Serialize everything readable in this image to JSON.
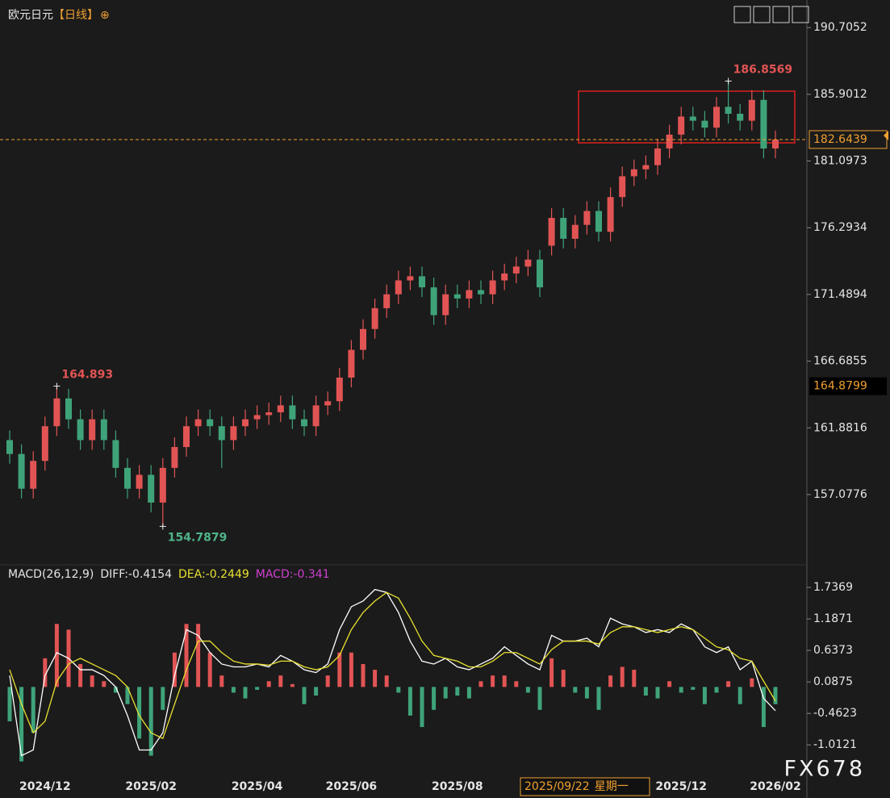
{
  "title": "欧元日元",
  "period": "【日线】",
  "title_icon": "⊕",
  "watermark": "FX678",
  "chart_data": [
    {
      "type": "candlestick",
      "categories": [
        null,
        null,
        null,
        "2024/12",
        null,
        null,
        null,
        null,
        null,
        null,
        null,
        null,
        "2025/02",
        null,
        null,
        null,
        null,
        null,
        null,
        null,
        null,
        "2025/04",
        null,
        null,
        null,
        null,
        null,
        null,
        null,
        "2025/06",
        null,
        null,
        null,
        null,
        null,
        null,
        null,
        null,
        "2025/08",
        null,
        null,
        null,
        null,
        null,
        null,
        null,
        null,
        null,
        null,
        null,
        null,
        null,
        null,
        null,
        null,
        null,
        null,
        "2025/12",
        null,
        null,
        null,
        null,
        null,
        null,
        null,
        "2026/02"
      ],
      "open": [
        161,
        160,
        157.5,
        159.5,
        162,
        164,
        162.5,
        161,
        162.5,
        161,
        159,
        157.5,
        158.5,
        156.5,
        159,
        160.5,
        162,
        162.5,
        162,
        161,
        162,
        162.5,
        162.8,
        163,
        163.5,
        162.5,
        162,
        163.5,
        163.8,
        165.5,
        167.5,
        169,
        170.5,
        171.5,
        172.5,
        172.8,
        172,
        170,
        171.5,
        171.2,
        171.8,
        171.5,
        172.5,
        173,
        173.5,
        174,
        175,
        177,
        175.5,
        176.5,
        177.5,
        176,
        178.5,
        180,
        180.5,
        180.8,
        182,
        183,
        184.3,
        184,
        183.5,
        185,
        184.5,
        184,
        185.5,
        182
      ],
      "high": [
        161.7,
        160.7,
        160.2,
        162.7,
        164.893,
        164.7,
        163.2,
        163.2,
        163.2,
        161.7,
        159.7,
        159.2,
        159.2,
        159.7,
        161.2,
        162.7,
        163.2,
        163.2,
        162.7,
        162.7,
        163.2,
        163.5,
        163.7,
        164.2,
        164.2,
        163.2,
        164.2,
        164.5,
        166.2,
        168.2,
        169.7,
        171.2,
        172.2,
        173.2,
        173.5,
        173.5,
        172.7,
        172.2,
        172.2,
        172.5,
        172.5,
        173.2,
        173.7,
        174.2,
        174.7,
        174.7,
        177.7,
        177.7,
        177.2,
        178.2,
        178.2,
        179.2,
        180.7,
        181.2,
        181.5,
        182.7,
        183.7,
        185,
        185,
        184.7,
        185.7,
        186.8569,
        185.2,
        186.2,
        186.2,
        183.3
      ],
      "low": [
        159.3,
        156.8,
        156.8,
        158.8,
        161.3,
        161.8,
        160.3,
        160.3,
        160.3,
        158.3,
        156.8,
        156.8,
        155.8,
        154.7879,
        158.3,
        159.8,
        161.3,
        161.3,
        159,
        160.3,
        161.3,
        161.8,
        162.1,
        162.3,
        161.8,
        161.3,
        161.3,
        162.8,
        163.1,
        164.8,
        166.8,
        168.3,
        169.8,
        170.8,
        171.8,
        171.3,
        169.3,
        169.3,
        170.5,
        170.5,
        170.8,
        170.8,
        171.8,
        172.3,
        172.8,
        171.3,
        174.3,
        174.8,
        174.8,
        175.8,
        175.3,
        175.3,
        177.8,
        179.3,
        179.8,
        180.1,
        181.3,
        182.3,
        183.3,
        182.8,
        182.8,
        183.8,
        183.3,
        183.3,
        181.3,
        181.3
      ],
      "close": [
        160,
        157.5,
        159.5,
        162,
        164,
        162.5,
        161,
        162.5,
        161,
        159,
        157.5,
        158.5,
        156.5,
        159,
        160.5,
        162,
        162.5,
        162,
        161,
        162,
        162.5,
        162.8,
        163,
        163.5,
        162.5,
        162,
        163.5,
        163.8,
        165.5,
        167.5,
        169,
        170.5,
        171.5,
        172.5,
        172.8,
        172,
        170,
        171.5,
        171.2,
        171.8,
        171.5,
        172.5,
        173,
        173.5,
        174,
        172,
        177,
        175.5,
        176.5,
        177.5,
        176,
        178.5,
        180,
        180.5,
        180.8,
        182,
        183,
        184.3,
        184,
        183.5,
        185,
        184.5,
        184,
        185.5,
        182,
        182.6439
      ],
      "ylim": [
        152.6,
        190.95
      ],
      "yticks": [
        190.7052,
        185.9012,
        181.0973,
        176.2934,
        171.4894,
        166.6855,
        161.8816,
        157.0776
      ],
      "up_color": "#e25454",
      "down_color": "#3fa37a",
      "high_color": "#e25454",
      "low_color": "#4fb58a",
      "last_price_color": "#f0a030",
      "crosshair": {
        "date": "2025/09/22",
        "weekday": "星期一",
        "price": 164.8799
      }
    },
    {
      "type": "macd",
      "name": "MACD(26,12,9)",
      "legend": [
        {
          "label": "DIFF:",
          "value": -0.4154,
          "color": "#e6e6e6"
        },
        {
          "label": "DEA:",
          "value": -0.2449,
          "color": "#e8e030"
        },
        {
          "label": "MACD:",
          "value": -0.341,
          "color": "#d040d0"
        }
      ],
      "histogram": [
        -0.6,
        -1.3,
        -0.8,
        0.5,
        1.1,
        1,
        0.4,
        0.2,
        0.1,
        -0.1,
        -0.3,
        -0.9,
        -1.2,
        -0.4,
        0.6,
        1.1,
        1.1,
        0.6,
        0.2,
        -0.1,
        -0.2,
        -0.05,
        0.1,
        0.2,
        0.05,
        -0.3,
        -0.15,
        0.2,
        0.6,
        0.6,
        0.4,
        0.3,
        0.2,
        -0.1,
        -0.5,
        -0.7,
        -0.4,
        -0.2,
        -0.15,
        -0.2,
        0.1,
        0.2,
        0.2,
        0.1,
        -0.1,
        -0.4,
        0.5,
        0.3,
        -0.1,
        -0.2,
        -0.4,
        0.2,
        0.35,
        0.3,
        -0.15,
        -0.2,
        0.1,
        -0.1,
        -0.05,
        -0.3,
        -0.1,
        0.1,
        -0.3,
        0.15,
        -0.7,
        -0.3
      ],
      "diff": [
        0.2,
        -1.2,
        -1.1,
        0.2,
        0.6,
        0.5,
        0.3,
        0.3,
        0.2,
        0,
        -0.5,
        -1.1,
        -1.1,
        -0.8,
        0.2,
        1,
        0.9,
        0.6,
        0.4,
        0.35,
        0.35,
        0.4,
        0.35,
        0.55,
        0.45,
        0.3,
        0.25,
        0.4,
        1,
        1.4,
        1.5,
        1.7,
        1.65,
        1.3,
        0.8,
        0.45,
        0.4,
        0.5,
        0.35,
        0.3,
        0.4,
        0.5,
        0.7,
        0.55,
        0.4,
        0.3,
        0.9,
        0.8,
        0.8,
        0.85,
        0.7,
        1.2,
        1.1,
        1.05,
        0.95,
        1,
        0.95,
        1.1,
        1,
        0.7,
        0.6,
        0.7,
        0.3,
        0.45,
        -0.2,
        -0.4154
      ],
      "dea": [
        0.3,
        -0.3,
        -0.8,
        -0.6,
        0.1,
        0.4,
        0.5,
        0.4,
        0.3,
        0.2,
        0,
        -0.5,
        -0.8,
        -0.9,
        -0.3,
        0.3,
        0.8,
        0.8,
        0.6,
        0.45,
        0.4,
        0.4,
        0.38,
        0.45,
        0.45,
        0.35,
        0.3,
        0.35,
        0.55,
        1,
        1.3,
        1.5,
        1.65,
        1.55,
        1.2,
        0.8,
        0.55,
        0.5,
        0.45,
        0.35,
        0.35,
        0.45,
        0.6,
        0.6,
        0.5,
        0.4,
        0.65,
        0.8,
        0.8,
        0.8,
        0.75,
        0.95,
        1.05,
        1.05,
        1,
        0.95,
        1,
        1.05,
        1,
        0.85,
        0.7,
        0.65,
        0.5,
        0.45,
        0.1,
        -0.2449
      ],
      "ylim": [
        -1.53,
        1.85
      ],
      "yticks": [
        1.7369,
        1.1871,
        0.6373,
        0.0875,
        -0.4623,
        -1.0121
      ],
      "up_color": "#e25454",
      "down_color": "#3fa37a",
      "diff_color": "#ffffff",
      "dea_color": "#e8e030"
    }
  ]
}
